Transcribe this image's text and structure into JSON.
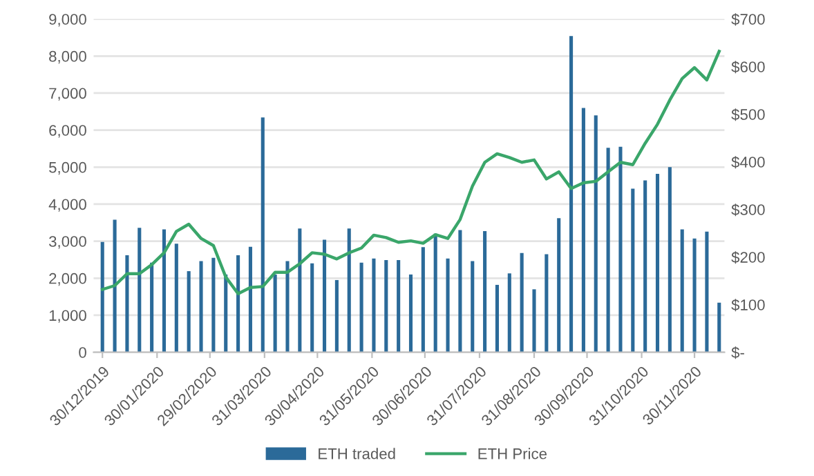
{
  "chart_data": {
    "type": "bar",
    "x": [
      "2019-12-30",
      "2020-01-06",
      "2020-01-13",
      "2020-01-20",
      "2020-01-27",
      "2020-02-03",
      "2020-02-10",
      "2020-02-17",
      "2020-02-24",
      "2020-03-02",
      "2020-03-09",
      "2020-03-16",
      "2020-03-23",
      "2020-03-30",
      "2020-04-06",
      "2020-04-13",
      "2020-04-20",
      "2020-04-27",
      "2020-05-04",
      "2020-05-11",
      "2020-05-18",
      "2020-05-25",
      "2020-06-01",
      "2020-06-08",
      "2020-06-15",
      "2020-06-22",
      "2020-06-29",
      "2020-07-06",
      "2020-07-13",
      "2020-07-20",
      "2020-07-27",
      "2020-08-03",
      "2020-08-10",
      "2020-08-17",
      "2020-08-24",
      "2020-08-31",
      "2020-09-07",
      "2020-09-14",
      "2020-09-21",
      "2020-09-28",
      "2020-10-05",
      "2020-10-12",
      "2020-10-19",
      "2020-10-26",
      "2020-11-02",
      "2020-11-09",
      "2020-11-16",
      "2020-11-23",
      "2020-11-30",
      "2020-12-07",
      "2020-12-14"
    ],
    "series": [
      {
        "name": "ETH traded",
        "color": "#2b6a99",
        "values": [
          2980,
          3580,
          2620,
          3360,
          2420,
          3320,
          2930,
          2190,
          2460,
          2550,
          2100,
          2620,
          2850,
          6340,
          2100,
          2460,
          3340,
          2400,
          3040,
          1950,
          3340,
          2420,
          2530,
          2490,
          2490,
          2100,
          2840,
          3200,
          2530,
          3300,
          2460,
          3270,
          1820,
          2130,
          2680,
          1700,
          2650,
          3620,
          8540,
          6600,
          6400,
          5520,
          5550,
          4420,
          4640,
          4820,
          5000,
          3320,
          3070,
          3260,
          1340
        ]
      },
      {
        "name": "ETH Price",
        "type": "line",
        "axis": "y2",
        "color": "#3aa66a",
        "values": [
          132,
          140,
          165,
          165,
          184,
          209,
          254,
          269,
          239,
          224,
          158,
          123,
          136,
          138,
          168,
          168,
          186,
          209,
          206,
          196,
          209,
          219,
          246,
          241,
          231,
          234,
          229,
          247,
          239,
          279,
          349,
          399,
          417,
          409,
          399,
          404,
          364,
          379,
          344,
          356,
          359,
          379,
          399,
          394,
          439,
          479,
          530,
          575,
          598,
          572,
          632
        ]
      }
    ],
    "xlim": [
      "2019-12-25",
      "2020-12-17"
    ],
    "xticks": [
      {
        "value": "2019-12-30",
        "label": "30/12/2019"
      },
      {
        "value": "2020-01-30",
        "label": "30/01/2020"
      },
      {
        "value": "2020-02-29",
        "label": "29/02/2020"
      },
      {
        "value": "2020-03-31",
        "label": "31/03/2020"
      },
      {
        "value": "2020-04-30",
        "label": "30/04/2020"
      },
      {
        "value": "2020-05-31",
        "label": "31/05/2020"
      },
      {
        "value": "2020-06-30",
        "label": "30/06/2020"
      },
      {
        "value": "2020-07-31",
        "label": "31/07/2020"
      },
      {
        "value": "2020-08-31",
        "label": "31/08/2020"
      },
      {
        "value": "2020-09-30",
        "label": "30/09/2020"
      },
      {
        "value": "2020-10-31",
        "label": "31/10/2020"
      },
      {
        "value": "2020-11-30",
        "label": "30/11/2020"
      }
    ],
    "ylim": [
      0,
      9000
    ],
    "yticks": [
      0,
      {
        "value": 1000,
        "label": "1,000"
      },
      {
        "value": 2000,
        "label": "2,000"
      },
      {
        "value": 3000,
        "label": "3,000"
      },
      {
        "value": 4000,
        "label": "4,000"
      },
      {
        "value": 5000,
        "label": "5,000"
      },
      {
        "value": 6000,
        "label": "6,000"
      },
      {
        "value": 7000,
        "label": "7,000"
      },
      {
        "value": 8000,
        "label": "8,000"
      },
      {
        "value": 9000,
        "label": "9,000"
      }
    ],
    "y2lim": [
      0,
      700
    ],
    "y2ticks": [
      {
        "value": 0,
        "label": "$-"
      },
      {
        "value": 100,
        "label": "$100"
      },
      {
        "value": 200,
        "label": "$200"
      },
      {
        "value": 300,
        "label": "$300"
      },
      {
        "value": 400,
        "label": "$400"
      },
      {
        "value": 500,
        "label": "$500"
      },
      {
        "value": 600,
        "label": "$600"
      },
      {
        "value": 700,
        "label": "$700"
      }
    ],
    "grid": "y",
    "legend": "bottom",
    "marker": "none",
    "line_style": "solid"
  }
}
